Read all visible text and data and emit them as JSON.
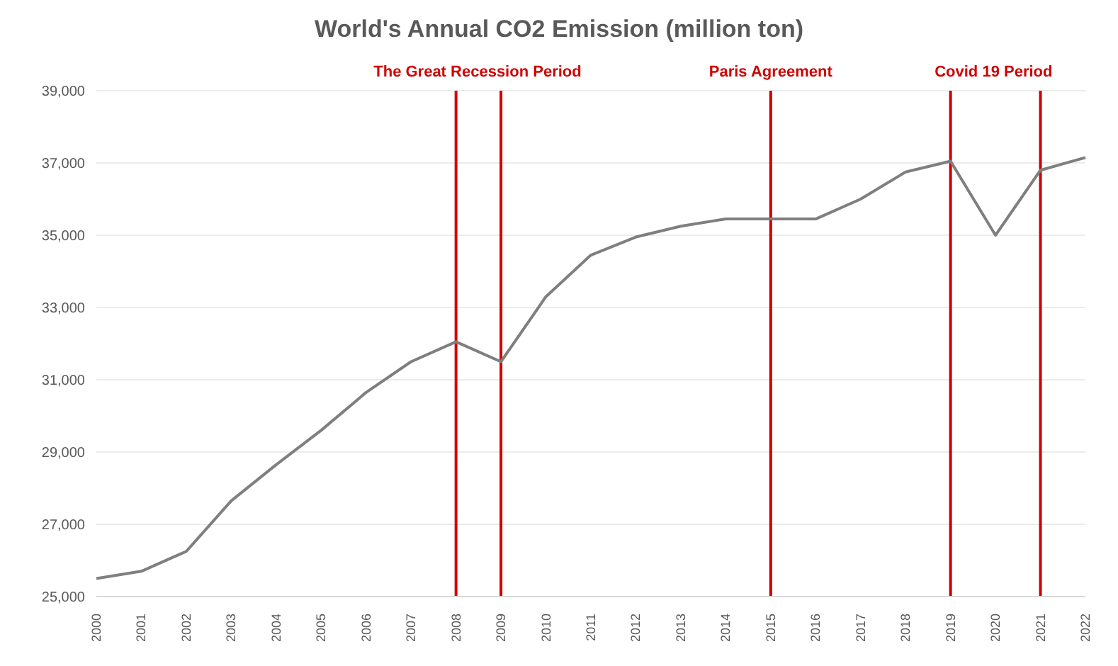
{
  "chart_data": {
    "type": "line",
    "title": "World's Annual CO2 Emission (million ton)",
    "categories": [
      "2000",
      "2001",
      "2002",
      "2003",
      "2004",
      "2005",
      "2006",
      "2007",
      "2008",
      "2009",
      "2010",
      "2011",
      "2012",
      "2013",
      "2014",
      "2015",
      "2016",
      "2017",
      "2018",
      "2019",
      "2020",
      "2021",
      "2022"
    ],
    "series": [
      {
        "color": "#7f7f7f",
        "values": [
          25500,
          25700,
          26250,
          27650,
          28650,
          29600,
          30650,
          31500,
          32050,
          31500,
          33300,
          34450,
          34950,
          35250,
          35450,
          35450,
          35450,
          36000,
          36750,
          37050,
          35000,
          36800,
          37150
        ]
      }
    ],
    "ylim": [
      25000,
      39000
    ],
    "yticks": [
      {
        "value": 25000,
        "label": "25,000"
      },
      {
        "value": 27000,
        "label": "27,000"
      },
      {
        "value": 29000,
        "label": "29,000"
      },
      {
        "value": 31000,
        "label": "31,000"
      },
      {
        "value": 33000,
        "label": "33,000"
      },
      {
        "value": 35000,
        "label": "35,000"
      },
      {
        "value": 37000,
        "label": "37,000"
      },
      {
        "value": 39000,
        "label": "39,000"
      }
    ],
    "ref_lines": [
      {
        "axis": "x",
        "value": "2008",
        "label": "The Great Recession Period",
        "color": "#d00000"
      },
      {
        "axis": "x",
        "value": "2009",
        "label": null,
        "color": "#d00000"
      },
      {
        "axis": "x",
        "value": "2015",
        "label": "Paris Agreement",
        "color": "#d00000"
      },
      {
        "axis": "x",
        "value": "2019",
        "label": "Covid 19 Period",
        "color": "#d00000"
      },
      {
        "axis": "x",
        "value": "2021",
        "label": null,
        "color": "#d00000"
      }
    ],
    "grid": "y",
    "marker": "none",
    "line_style": "solid"
  }
}
